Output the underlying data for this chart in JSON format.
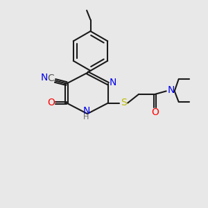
{
  "background_color": "#e8e8e8",
  "bond_color": "#1a1a1a",
  "bond_width": 1.5,
  "atom_colors": {
    "N": "#0000ee",
    "O": "#ff0000",
    "S": "#bbbb00",
    "C": "#555555",
    "H": "#666666"
  },
  "font_size": 10,
  "font_size_small": 8
}
